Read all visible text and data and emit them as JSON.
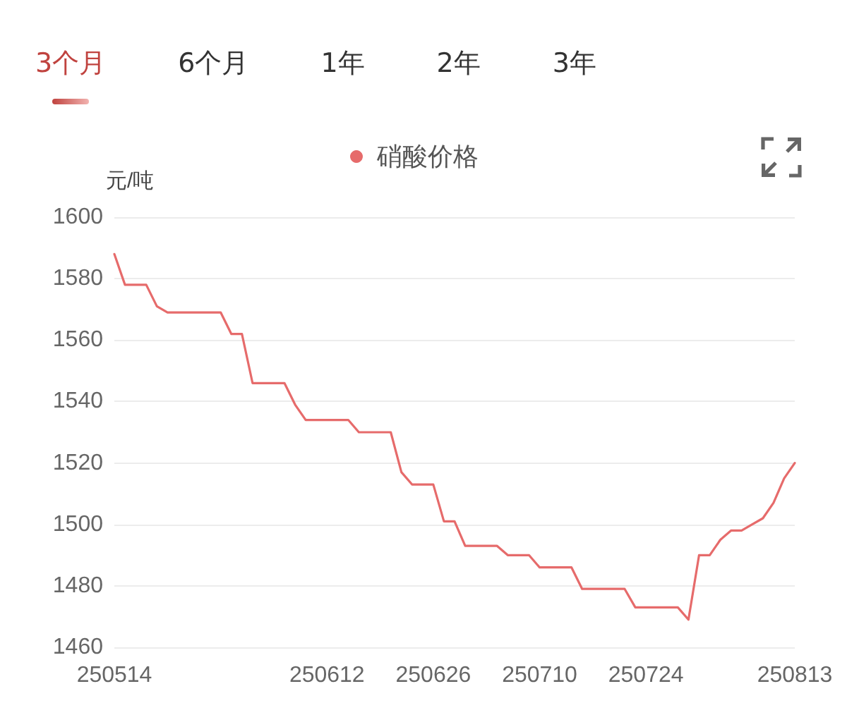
{
  "chart_data": {
    "type": "line",
    "ylabel": "元/吨",
    "annotations": [
      "3个月",
      "6个月",
      "1年",
      "2年",
      "3年"
    ],
    "categories": [
      "250514",
      null,
      null,
      null,
      null,
      null,
      null,
      null,
      null,
      null,
      null,
      null,
      null,
      null,
      null,
      null,
      null,
      null,
      null,
      null,
      "250612",
      null,
      null,
      null,
      null,
      null,
      null,
      null,
      null,
      null,
      "250626",
      null,
      null,
      null,
      null,
      null,
      null,
      null,
      null,
      null,
      "250710",
      null,
      null,
      null,
      null,
      null,
      null,
      null,
      null,
      null,
      "250724",
      null,
      null,
      null,
      null,
      null,
      null,
      null,
      null,
      null,
      null,
      null,
      null,
      null,
      "250813"
    ],
    "series": [
      {
        "name": "硝酸价格",
        "color": "#e66b6b",
        "values": [
          1588,
          1578,
          1578,
          1578,
          1571,
          1569,
          1569,
          1569,
          1569,
          1569,
          1569,
          1562,
          1562,
          1546,
          1546,
          1546,
          1546,
          1539,
          1534,
          1534,
          1534,
          1534,
          1534,
          1530,
          1530,
          1530,
          1530,
          1517,
          1513,
          1513,
          1513,
          1501,
          1501,
          1493,
          1493,
          1493,
          1493,
          1490,
          1490,
          1490,
          1486,
          1486,
          1486,
          1486,
          1479,
          1479,
          1479,
          1479,
          1479,
          1473,
          1473,
          1473,
          1473,
          1473,
          1469,
          1490,
          1490,
          1495,
          1498,
          1498,
          1500,
          1502,
          1507,
          1515,
          1520
        ]
      }
    ],
    "ylim": [
      1460,
      1600
    ],
    "yticks": [
      1460,
      1480,
      1500,
      1520,
      1540,
      1560,
      1580,
      1600
    ],
    "grid": "y",
    "legend": "top"
  }
}
